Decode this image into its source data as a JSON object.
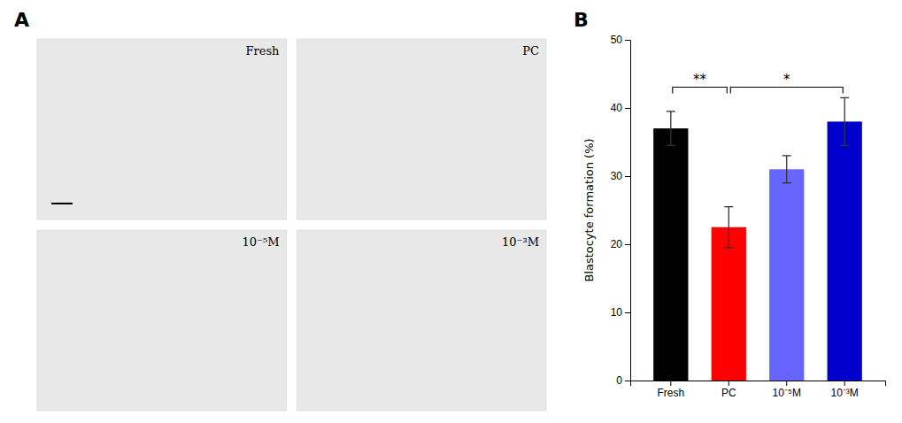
{
  "chart_data": [
    {
      "type": "image_grid",
      "title": "A",
      "categories": [
        "Fresh",
        "PC",
        "10⁻⁵M",
        "10⁻³M"
      ]
    },
    {
      "type": "bar",
      "title": "B",
      "categories": [
        "Fresh",
        "PC",
        "10⁻⁵M",
        "10⁻³M"
      ],
      "values": [
        37.0,
        22.5,
        31.0,
        38.0
      ],
      "errors": [
        2.5,
        3.0,
        2.0,
        3.5
      ],
      "colors": [
        "#000000",
        "#ff0000",
        "#6666ff",
        "#0000cc"
      ],
      "ylabel": "Blastocyte formation (%)",
      "ylim": [
        0,
        50
      ],
      "yticks": [
        0,
        10,
        20,
        30,
        40,
        50
      ],
      "grid": false,
      "annotations": [
        {
          "text": "**",
          "from": "Fresh",
          "to": "PC"
        },
        {
          "text": "*",
          "from": "PC",
          "to": "10⁻³M"
        }
      ]
    }
  ]
}
